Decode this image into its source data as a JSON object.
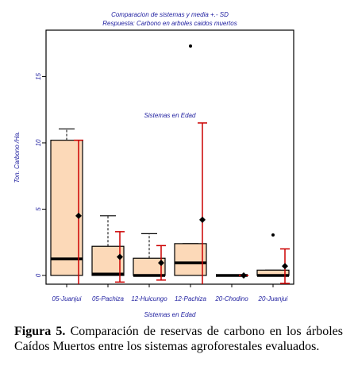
{
  "chart_data": {
    "type": "box",
    "title": "Comparacion de sistemas y media +.- SD",
    "subtitle": "Respuesta: Carbono en arboles caidos muertos",
    "annotation": "Sistemas en Edad",
    "x_label": "Sistemas en Edad",
    "y_label": "Ton. Carbono /Ha.",
    "categories": [
      "05-Juanjui",
      "05-Pachiza",
      "12-Huicungo",
      "12-Pachiza",
      "20-Chodino",
      "20-Juanjui"
    ],
    "boxes": [
      {
        "whisker_low": 0,
        "q1": 0,
        "median": 1.25,
        "q3": 10.2,
        "whisker_high": 11.05,
        "outliers": [],
        "mean": 4.5,
        "sd": 5.7
      },
      {
        "whisker_low": 0,
        "q1": 0,
        "median": 0.1,
        "q3": 2.2,
        "whisker_high": 4.5,
        "outliers": [],
        "mean": 1.4,
        "sd": 1.9
      },
      {
        "whisker_low": 0,
        "q1": 0,
        "median": 0,
        "q3": 1.3,
        "whisker_high": 3.15,
        "outliers": [],
        "mean": 0.95,
        "sd": 1.3
      },
      {
        "whisker_low": 0,
        "q1": 0,
        "median": 0.95,
        "q3": 2.4,
        "whisker_high": 2.4,
        "outliers": [
          17.3
        ],
        "mean": 4.2,
        "sd": 7.3
      },
      {
        "whisker_low": 0,
        "q1": 0,
        "median": 0,
        "q3": 0,
        "whisker_high": 0,
        "outliers": [],
        "mean": 0,
        "sd": 0
      },
      {
        "whisker_low": 0,
        "q1": 0,
        "median": 0,
        "q3": 0.4,
        "whisker_high": 0.4,
        "outliers": [
          3.05
        ],
        "mean": 0.7,
        "sd": 1.3
      }
    ],
    "box_color": "#fcd9b8",
    "sd_color": "#cc0000",
    "ylim": [
      -0.66,
      18.5
    ],
    "yticks": [
      0,
      5,
      10,
      15
    ]
  },
  "caption": {
    "label": "Figura 5.",
    "text": "Comparación de reservas de carbono en los árboles Caídos Muertos entre los sistemas agroforestales evaluados."
  }
}
